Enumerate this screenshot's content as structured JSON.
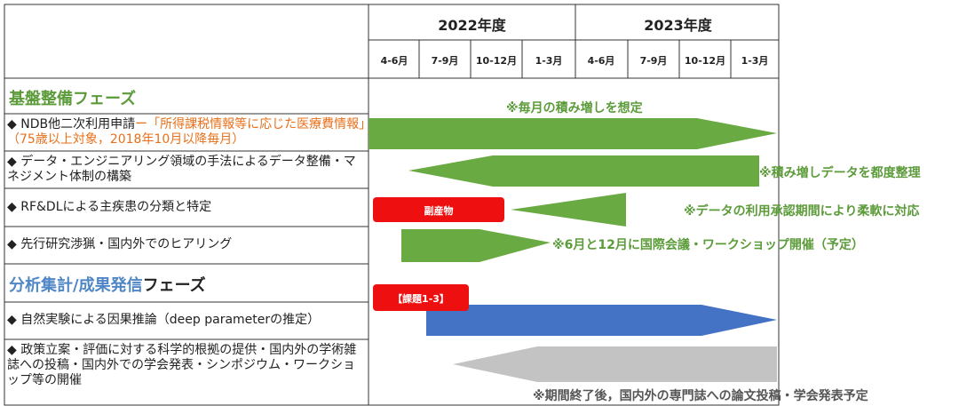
{
  "header": {
    "years": [
      "2022年度",
      "2023年度"
    ],
    "quarters": [
      "4-6月",
      "7-9月",
      "10-12月",
      "1-3月",
      "4-6月",
      "7-9月",
      "10-12月",
      "1-3月"
    ]
  },
  "phases": [
    {
      "title": "基盤整備フェーズ"
    },
    {
      "title_colored": "分析集計/成果発信",
      "title_rest": "フェーズ"
    }
  ],
  "rows": [
    {
      "label": "◆ NDB他二次利用申請",
      "label_highlight": "ー「所得課税情報等に応じた医療費情報」（75歳以上対象，2018年10月以降毎月）",
      "note": "※毎月の積み増しを想定"
    },
    {
      "label": "◆ データ・エンジニアリング領域の手法によるデータ整備・マネジメント体制の構築",
      "note": "※積み増しデータを都度整理"
    },
    {
      "label": "◆ RF&DLによる主疾患の分類と特定",
      "tag": "副産物",
      "note": "※データの利用承認期間により柔軟に対応"
    },
    {
      "label": "◆ 先行研究渉猟・国内外でのヒアリング",
      "note": "※6月と12月に国際会議・ワークショップ開催（予定）"
    },
    {
      "label": "◆ 自然実験による因果推論（deep parameterの推定）",
      "tag": "【課題1-3】"
    },
    {
      "label": "◆ 政策立案・評価に対する科学的根拠の提供・国内外の学術雑誌への投稿・国内外での学会発表・シンポジウム・ワークショップ等の開催",
      "note": "※期間終了後，国内外の専門誌への論文投稿・学会発表予定"
    }
  ]
}
